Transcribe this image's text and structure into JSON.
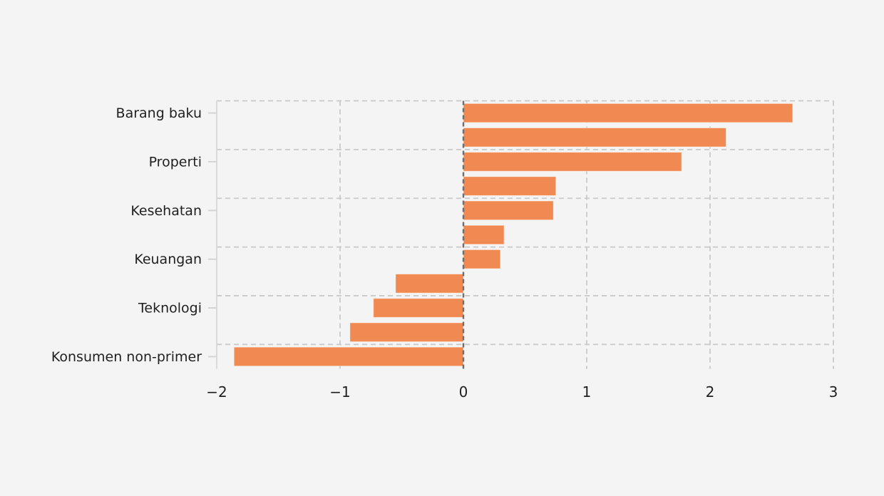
{
  "chart_data": {
    "type": "bar",
    "orientation": "horizontal",
    "title": "",
    "xlabel": "",
    "ylabel": "",
    "xlim": [
      -2,
      3
    ],
    "xticks": [
      -2,
      -1,
      0,
      1,
      2,
      3
    ],
    "xtick_labels": [
      "−2",
      "−1",
      "0",
      "1",
      "2",
      "3"
    ],
    "grid": "dashed",
    "legend": "none",
    "colors": {
      "bar": "#f18a52",
      "bar_edge": "#ffffff",
      "background": "#f4f4f5",
      "grid_line": "#c9c9c9",
      "zero_line": "#6e6e6e",
      "spine": "#d9d9d9",
      "tick_mark": "#d4d4d4",
      "text": "#1f1f1f"
    },
    "bars": [
      {
        "label": "Barang baku",
        "value": 2.67
      },
      {
        "label": "",
        "value": 2.13
      },
      {
        "label": "Properti",
        "value": 1.77
      },
      {
        "label": "",
        "value": 0.75
      },
      {
        "label": "Kesehatan",
        "value": 0.73
      },
      {
        "label": "",
        "value": 0.33
      },
      {
        "label": "Keuangan",
        "value": 0.3
      },
      {
        "label": "",
        "value": -0.55
      },
      {
        "label": "Teknologi",
        "value": -0.73
      },
      {
        "label": "",
        "value": -0.92
      },
      {
        "label": "Konsumen non-primer",
        "value": -1.86
      }
    ]
  }
}
